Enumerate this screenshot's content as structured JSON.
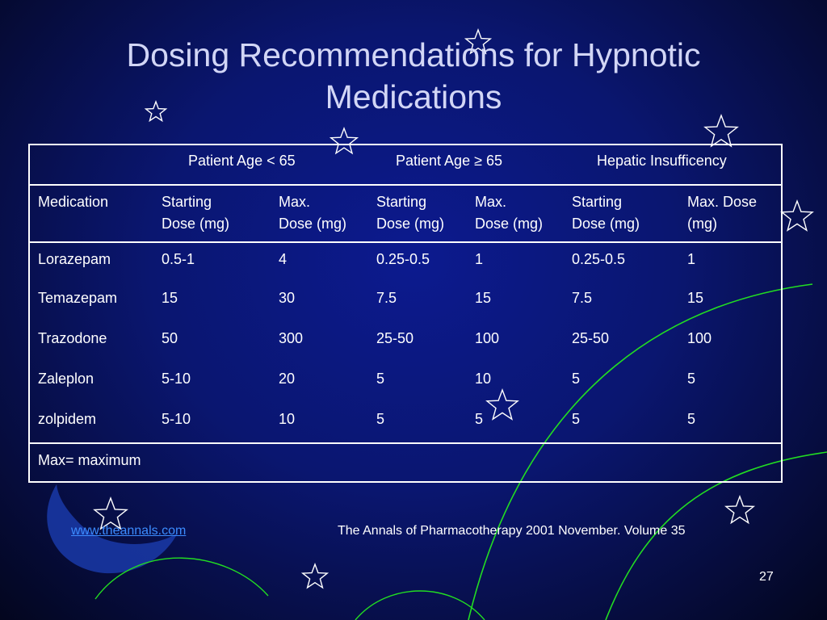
{
  "slide": {
    "title_line1": "Dosing Recommendations for Hypnotic",
    "title_line2": "Medications",
    "page_number": "27"
  },
  "table": {
    "group_headers": [
      "Patient Age < 65",
      "Patient Age ≥ 65",
      "Hepatic Insufficency"
    ],
    "medication_header": "Medication",
    "sub_headers": [
      [
        "Starting",
        "Dose (mg)"
      ],
      [
        "Max.",
        "Dose (mg)"
      ],
      [
        "Starting",
        "Dose (mg)"
      ],
      [
        "Max.",
        "Dose (mg)"
      ],
      [
        "Starting",
        "Dose (mg)"
      ],
      [
        "Max. Dose",
        "(mg)"
      ]
    ],
    "rows": [
      [
        "Lorazepam",
        "0.5-1",
        "4",
        "0.25-0.5",
        "1",
        "0.25-0.5",
        "1"
      ],
      [
        "Temazepam",
        "15",
        "30",
        "7.5",
        "15",
        "7.5",
        "15"
      ],
      [
        "Trazodone",
        "50",
        "300",
        "25-50",
        "100",
        "25-50",
        "100"
      ],
      [
        "Zaleplon",
        "5-10",
        "20",
        "5",
        "10",
        "5",
        "5"
      ],
      [
        "zolpidem",
        "5-10",
        "10",
        "5",
        "5",
        "5",
        "5"
      ]
    ],
    "footnote": "Max= maximum"
  },
  "footer": {
    "link_text": "www.theannals.com",
    "source_text": "The Annals of Pharmacotherapy   2001 November. Volume 35"
  },
  "colors": {
    "background": "#0a1670",
    "title": "#d2d6f6",
    "link": "#3c8cff",
    "arc": "#22dd22",
    "moon": "#1a3aa8"
  }
}
